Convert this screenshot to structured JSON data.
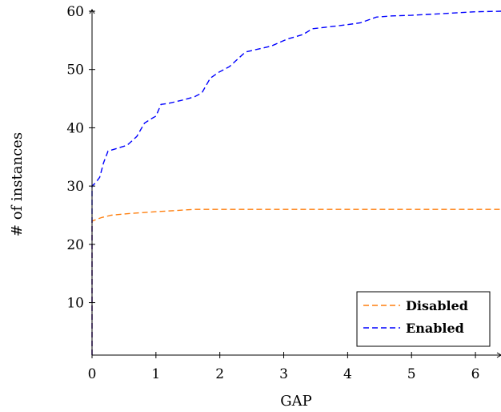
{
  "chart_data": {
    "type": "line",
    "xlabel": "GAP",
    "ylabel": "# of instances",
    "xlim": [
      0,
      6.4
    ],
    "ylim": [
      1,
      60
    ],
    "x_ticks": [
      "0",
      "1",
      "2",
      "3",
      "4",
      "5",
      "6"
    ],
    "y_ticks": [
      "10",
      "20",
      "30",
      "40",
      "50",
      "60"
    ],
    "grid": false,
    "legend_position": "bottom-right",
    "series": [
      {
        "name": "Disabled",
        "color": "#ff7f0e",
        "dash": "dashed",
        "points": [
          [
            0,
            1
          ],
          [
            0,
            24
          ],
          [
            0.05,
            24.2
          ],
          [
            0.15,
            24.6
          ],
          [
            0.3,
            25
          ],
          [
            0.6,
            25.3
          ],
          [
            1.0,
            25.6
          ],
          [
            1.3,
            25.8
          ],
          [
            1.6,
            26
          ],
          [
            2.0,
            26
          ],
          [
            6.4,
            26
          ]
        ]
      },
      {
        "name": "Enabled",
        "color": "#0000ff",
        "dash": "dashed",
        "points": [
          [
            0,
            1
          ],
          [
            0,
            30
          ],
          [
            0.05,
            30.5
          ],
          [
            0.12,
            31.5
          ],
          [
            0.18,
            34
          ],
          [
            0.25,
            36
          ],
          [
            0.4,
            36.5
          ],
          [
            0.55,
            37
          ],
          [
            0.7,
            38.5
          ],
          [
            0.82,
            40.8
          ],
          [
            0.92,
            41.5
          ],
          [
            1.0,
            42
          ],
          [
            1.08,
            44
          ],
          [
            1.2,
            44.2
          ],
          [
            1.4,
            44.7
          ],
          [
            1.6,
            45.3
          ],
          [
            1.72,
            46
          ],
          [
            1.85,
            48.5
          ],
          [
            1.98,
            49.5
          ],
          [
            2.15,
            50.5
          ],
          [
            2.4,
            53
          ],
          [
            2.8,
            54
          ],
          [
            3.05,
            55.2
          ],
          [
            3.3,
            56
          ],
          [
            3.45,
            57
          ],
          [
            3.7,
            57.3
          ],
          [
            4.0,
            57.7
          ],
          [
            4.2,
            58
          ],
          [
            4.45,
            59
          ],
          [
            4.7,
            59.2
          ],
          [
            5.0,
            59.3
          ],
          [
            5.5,
            59.6
          ],
          [
            6.0,
            59.9
          ],
          [
            6.4,
            60
          ]
        ]
      }
    ]
  }
}
